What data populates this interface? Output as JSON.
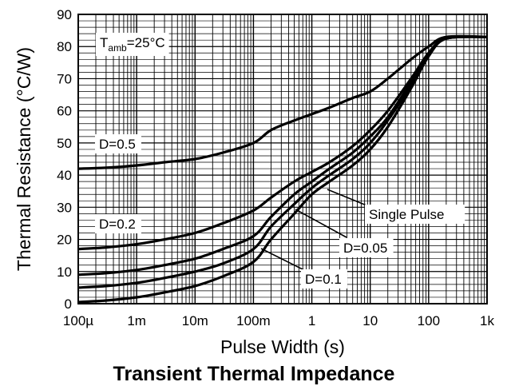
{
  "chart_data": {
    "type": "line",
    "title": "Transient Thermal Impedance",
    "xlabel": "Pulse Width (s)",
    "ylabel": "Thermal Resistance (°C/W)",
    "x_scale": "log",
    "xlim": [
      0.0001,
      1000
    ],
    "ylim": [
      0,
      90
    ],
    "grid": true,
    "x_ticks": [
      {
        "value": 0.0001,
        "label": "100µ"
      },
      {
        "value": 0.001,
        "label": "1m"
      },
      {
        "value": 0.01,
        "label": "10m"
      },
      {
        "value": 0.1,
        "label": "100m"
      },
      {
        "value": 1,
        "label": "1"
      },
      {
        "value": 10,
        "label": "10"
      },
      {
        "value": 100,
        "label": "100"
      },
      {
        "value": 1000,
        "label": "1k"
      }
    ],
    "y_ticks": [
      0,
      10,
      20,
      30,
      40,
      50,
      60,
      70,
      80,
      90
    ],
    "condition": {
      "prefix": "T",
      "subscript": "amb",
      "suffix": "=25°C"
    },
    "series": [
      {
        "name": "D=0.5",
        "points": [
          [
            0.0001,
            42
          ],
          [
            0.0003,
            42.3
          ],
          [
            0.001,
            43
          ],
          [
            0.003,
            44
          ],
          [
            0.01,
            45
          ],
          [
            0.03,
            47
          ],
          [
            0.1,
            50
          ],
          [
            0.2,
            54
          ],
          [
            0.5,
            57
          ],
          [
            1,
            59
          ],
          [
            2,
            61
          ],
          [
            5,
            64
          ],
          [
            10,
            66
          ],
          [
            20,
            70
          ],
          [
            50,
            76
          ],
          [
            100,
            80
          ],
          [
            200,
            83
          ],
          [
            1000,
            83
          ]
        ]
      },
      {
        "name": "D=0.2",
        "points": [
          [
            0.0001,
            17
          ],
          [
            0.0003,
            17.5
          ],
          [
            0.001,
            18.5
          ],
          [
            0.003,
            20
          ],
          [
            0.01,
            22
          ],
          [
            0.03,
            25
          ],
          [
            0.1,
            29
          ],
          [
            0.2,
            33
          ],
          [
            0.5,
            38
          ],
          [
            1,
            41
          ],
          [
            2,
            44
          ],
          [
            5,
            49
          ],
          [
            10,
            54
          ],
          [
            20,
            60
          ],
          [
            50,
            70
          ],
          [
            100,
            78
          ],
          [
            200,
            82.5
          ],
          [
            1000,
            83
          ]
        ]
      },
      {
        "name": "D=0.1",
        "points": [
          [
            0.0001,
            9
          ],
          [
            0.0003,
            9.5
          ],
          [
            0.001,
            10.5
          ],
          [
            0.003,
            12
          ],
          [
            0.01,
            14
          ],
          [
            0.03,
            17
          ],
          [
            0.1,
            21
          ],
          [
            0.2,
            27
          ],
          [
            0.5,
            34
          ],
          [
            1,
            38
          ],
          [
            2,
            42
          ],
          [
            5,
            47
          ],
          [
            10,
            52
          ],
          [
            20,
            58
          ],
          [
            50,
            69
          ],
          [
            100,
            78
          ],
          [
            200,
            82.5
          ],
          [
            1000,
            83
          ]
        ]
      },
      {
        "name": "D=0.05",
        "points": [
          [
            0.0001,
            5
          ],
          [
            0.0003,
            5.5
          ],
          [
            0.001,
            6.5
          ],
          [
            0.003,
            8
          ],
          [
            0.01,
            10
          ],
          [
            0.03,
            12.5
          ],
          [
            0.1,
            17
          ],
          [
            0.2,
            24
          ],
          [
            0.5,
            31
          ],
          [
            1,
            36
          ],
          [
            2,
            40
          ],
          [
            5,
            45
          ],
          [
            10,
            50
          ],
          [
            20,
            57
          ],
          [
            50,
            68
          ],
          [
            100,
            77.5
          ],
          [
            200,
            82.5
          ],
          [
            1000,
            83
          ]
        ]
      },
      {
        "name": "Single Pulse",
        "points": [
          [
            0.0001,
            0.5
          ],
          [
            0.0003,
            1
          ],
          [
            0.001,
            2
          ],
          [
            0.003,
            3.5
          ],
          [
            0.01,
            5.5
          ],
          [
            0.03,
            8.5
          ],
          [
            0.1,
            13
          ],
          [
            0.2,
            20
          ],
          [
            0.5,
            28
          ],
          [
            1,
            34
          ],
          [
            2,
            38
          ],
          [
            5,
            43
          ],
          [
            10,
            48
          ],
          [
            20,
            55
          ],
          [
            50,
            67
          ],
          [
            100,
            77
          ],
          [
            200,
            82.5
          ],
          [
            1000,
            83
          ]
        ]
      }
    ]
  }
}
